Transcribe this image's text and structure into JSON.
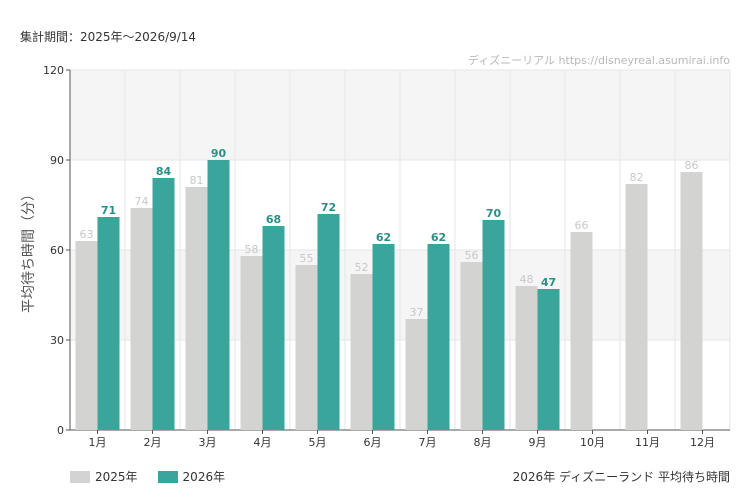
{
  "header": {
    "period": "集計期間：2025年～2026/9/14",
    "watermark": "ディズニーリアル https://disneyreal.asumirai.info"
  },
  "footer": {
    "title": "2026年 ディズニーランド 平均待ち時間"
  },
  "colors": {
    "s2025": "#d3d3d1",
    "s2026": "#3aa59b",
    "label2025": "#c8c8c8",
    "label2026": "#2a8f86",
    "band": "#f5f5f5",
    "grid": "#e6e6e6"
  },
  "chart_data": {
    "type": "bar",
    "ylabel": "平均待ち時間（分）",
    "ylim": [
      0,
      120
    ],
    "yticks": [
      "0",
      "30",
      "60",
      "90",
      "120"
    ],
    "categories": [
      "1月",
      "2月",
      "3月",
      "4月",
      "5月",
      "6月",
      "7月",
      "8月",
      "9月",
      "10月",
      "11月",
      "12月"
    ],
    "series": [
      {
        "name": "2025年",
        "values": [
          63,
          74,
          81,
          58,
          55,
          52,
          37,
          56,
          48,
          66,
          82,
          86
        ]
      },
      {
        "name": "2026年",
        "values": [
          71,
          84,
          90,
          68,
          72,
          62,
          62,
          70,
          47,
          null,
          null,
          null
        ]
      }
    ],
    "legend": "bottom-left"
  }
}
